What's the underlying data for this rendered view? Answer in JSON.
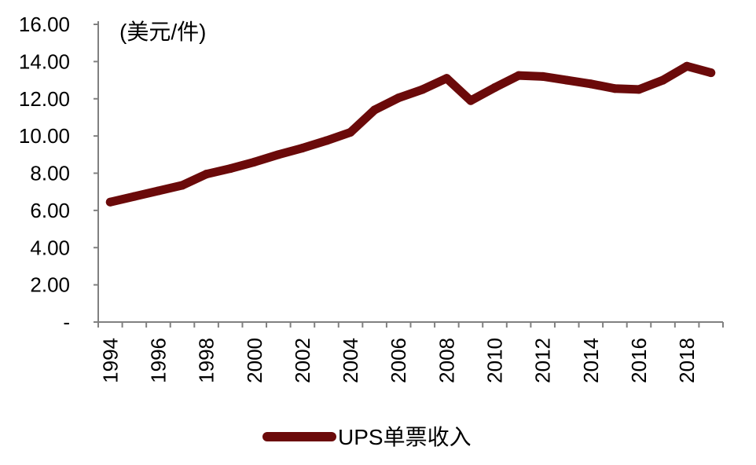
{
  "chart_data": {
    "type": "line",
    "title": "",
    "unit_label": "(美元/件)",
    "xlabel": "",
    "ylabel": "",
    "x": [
      1994,
      1995,
      1996,
      1997,
      1998,
      1999,
      2000,
      2001,
      2002,
      2003,
      2004,
      2005,
      2006,
      2007,
      2008,
      2009,
      2010,
      2011,
      2012,
      2013,
      2014,
      2015,
      2016,
      2017,
      2018,
      2019
    ],
    "x_tick_labels": [
      "1994",
      "1996",
      "1998",
      "2000",
      "2002",
      "2004",
      "2006",
      "2008",
      "2010",
      "2012",
      "2014",
      "2016",
      "2018"
    ],
    "y_tick_labels": [
      "-",
      "2.00",
      "4.00",
      "6.00",
      "8.00",
      "10.00",
      "12.00",
      "14.00",
      "16.00"
    ],
    "y_ticks": [
      0,
      2,
      4,
      6,
      8,
      10,
      12,
      14,
      16
    ],
    "ylim": [
      0,
      16
    ],
    "xlim": [
      1994,
      2019
    ],
    "grid": false,
    "legend_position": "bottom-center",
    "series": [
      {
        "name": "UPS单票收入",
        "color": "#6b0a0a",
        "values": [
          6.45,
          6.75,
          7.05,
          7.35,
          7.95,
          8.25,
          8.6,
          9.0,
          9.35,
          9.75,
          10.2,
          11.4,
          12.05,
          12.5,
          13.1,
          11.9,
          12.6,
          13.25,
          13.2,
          13.0,
          12.8,
          12.55,
          12.5,
          13.0,
          13.75,
          13.4
        ]
      }
    ]
  }
}
